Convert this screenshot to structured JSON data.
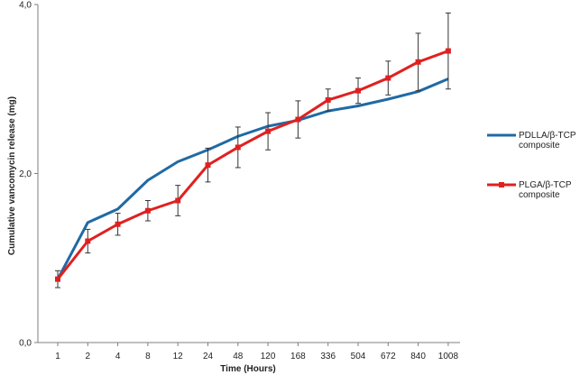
{
  "chart_data": {
    "type": "line",
    "xlabel": "Time (Hours)",
    "ylabel": "Cumulative vancomycin release (mg)",
    "ylim": [
      0,
      4
    ],
    "y_ticks": [
      "0,0",
      "2,0",
      "4,0"
    ],
    "categories": [
      "1",
      "2",
      "4",
      "8",
      "12",
      "24",
      "48",
      "120",
      "168",
      "336",
      "504",
      "672",
      "840",
      "1008"
    ],
    "grid": false,
    "legend_position": "right",
    "series": [
      {
        "name_lines": [
          "PDLLA/β-TCP",
          "composite"
        ],
        "color": "#1f6aa5",
        "marker": "none",
        "values": [
          0.75,
          1.42,
          1.58,
          1.92,
          2.14,
          2.28,
          2.44,
          2.56,
          2.63,
          2.74,
          2.8,
          2.88,
          2.97,
          3.12
        ],
        "errors": []
      },
      {
        "name_lines": [
          "PLGA/β-TCP",
          "composite"
        ],
        "color": "#e02020",
        "marker": "square",
        "values": [
          0.75,
          1.2,
          1.4,
          1.56,
          1.68,
          2.1,
          2.31,
          2.5,
          2.64,
          2.87,
          2.98,
          3.13,
          3.32,
          3.45
        ],
        "errors": [
          0.1,
          0.14,
          0.13,
          0.12,
          0.18,
          0.2,
          0.24,
          0.22,
          0.22,
          0.13,
          0.15,
          0.2,
          0.34,
          0.45
        ]
      }
    ]
  }
}
